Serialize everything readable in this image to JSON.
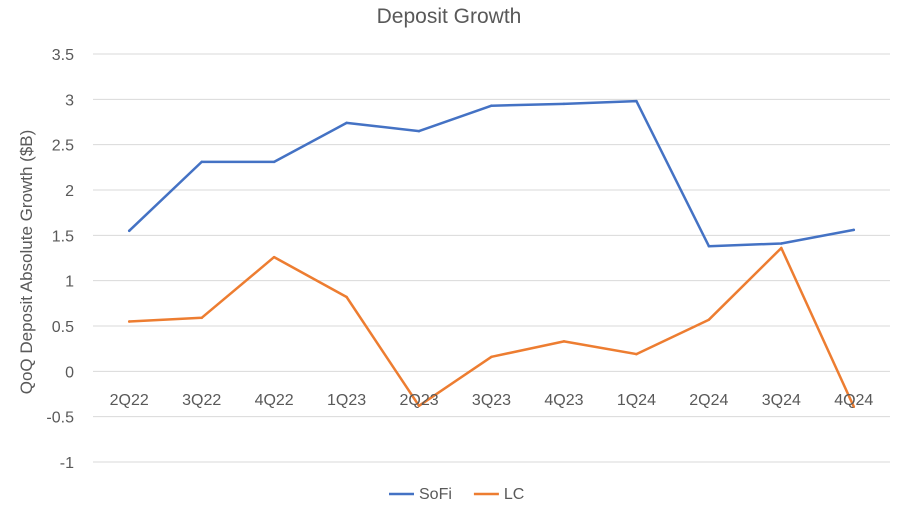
{
  "chart_data": {
    "type": "line",
    "title": "Deposit Growth",
    "xlabel": "",
    "ylabel": "QoQ Deposit Absolute Growth ($B)",
    "categories": [
      "2Q22",
      "3Q22",
      "4Q22",
      "1Q23",
      "2Q23",
      "3Q23",
      "4Q23",
      "1Q24",
      "2Q24",
      "3Q24",
      "4Q24"
    ],
    "y_ticks": [
      "3.5",
      "3",
      "2.5",
      "2",
      "1.5",
      "1",
      "0.5",
      "0",
      "-0.5",
      "-1"
    ],
    "ylim": [
      -1,
      3.5
    ],
    "grid": true,
    "legend_position": "bottom",
    "series": [
      {
        "name": "SoFi",
        "color": "#4472C4",
        "values": [
          1.55,
          2.31,
          2.31,
          2.74,
          2.65,
          2.93,
          2.95,
          2.98,
          1.38,
          1.41,
          1.56
        ]
      },
      {
        "name": "LC",
        "color": "#ED7D31",
        "values": [
          0.55,
          0.59,
          1.26,
          0.82,
          -0.38,
          0.16,
          0.33,
          0.19,
          0.57,
          1.36,
          -0.39
        ]
      }
    ]
  }
}
